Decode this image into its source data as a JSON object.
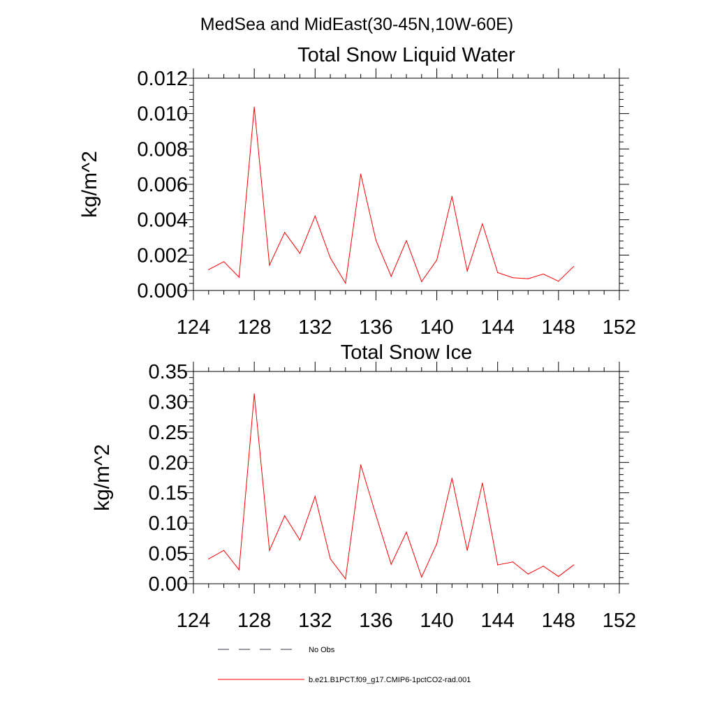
{
  "figure": {
    "main_title": "MedSea and MidEast(30-45N,10W-60E)"
  },
  "chart_data": [
    {
      "type": "line",
      "title": "Total Snow Liquid Water",
      "xlabel": "",
      "ylabel": "kg/m^2",
      "xlim": [
        124,
        152
      ],
      "ylim": [
        0,
        0.012
      ],
      "x_ticks": [
        124,
        128,
        132,
        136,
        140,
        144,
        148,
        152
      ],
      "x_tick_labels": [
        "124",
        "128",
        "132",
        "136",
        "140",
        "144",
        "148",
        "152"
      ],
      "y_ticks": [
        0,
        0.002,
        0.004,
        0.006,
        0.008,
        0.01,
        0.012
      ],
      "y_tick_labels": [
        "0.000",
        "0.002",
        "0.004",
        "0.006",
        "0.008",
        "0.010",
        "0.012"
      ],
      "grid": false,
      "series": [
        {
          "color": "#ff0000",
          "x": [
            125,
            126,
            127,
            128,
            129,
            130,
            131,
            132,
            133,
            134,
            135,
            136,
            137,
            138,
            139,
            140,
            141,
            142,
            143,
            144,
            145,
            146,
            147,
            148,
            149
          ],
          "values": [
            0.00118,
            0.00163,
            0.00075,
            0.01037,
            0.00143,
            0.00328,
            0.0021,
            0.00421,
            0.00184,
            0.00041,
            0.00658,
            0.00283,
            0.0008,
            0.00282,
            0.0005,
            0.00172,
            0.00532,
            0.0011,
            0.00377,
            0.00101,
            0.00072,
            0.00066,
            0.00093,
            0.00052,
            0.00136
          ]
        }
      ]
    },
    {
      "type": "line",
      "title": "Total Snow Ice",
      "xlabel": "",
      "ylabel": "kg/m^2",
      "xlim": [
        124,
        152
      ],
      "ylim": [
        0,
        0.35
      ],
      "x_ticks": [
        124,
        128,
        132,
        136,
        140,
        144,
        148,
        152
      ],
      "x_tick_labels": [
        "124",
        "128",
        "132",
        "136",
        "140",
        "144",
        "148",
        "152"
      ],
      "y_ticks": [
        0,
        0.05,
        0.1,
        0.15,
        0.2,
        0.25,
        0.3,
        0.35
      ],
      "y_tick_labels": [
        "0.00",
        "0.05",
        "0.10",
        "0.15",
        "0.20",
        "0.25",
        "0.30",
        "0.35"
      ],
      "grid": false,
      "series": [
        {
          "color": "#ff0000",
          "x": [
            125,
            126,
            127,
            128,
            129,
            130,
            131,
            132,
            133,
            134,
            135,
            136,
            137,
            138,
            139,
            140,
            141,
            142,
            143,
            144,
            145,
            146,
            147,
            148,
            149
          ],
          "values": [
            0.041,
            0.055,
            0.023,
            0.313,
            0.055,
            0.112,
            0.072,
            0.144,
            0.041,
            0.008,
            0.196,
            0.113,
            0.032,
            0.085,
            0.011,
            0.066,
            0.174,
            0.055,
            0.166,
            0.031,
            0.036,
            0.016,
            0.029,
            0.012,
            0.031
          ]
        }
      ]
    }
  ],
  "legend": {
    "placement": "bottom",
    "entries": [
      {
        "label": "No Obs",
        "color": "#333344",
        "style": "dashed"
      },
      {
        "label": "b.e21.B1PCT.f09_g17.CMIP6-1pctCO2-rad.001",
        "color": "#ff0000",
        "style": "solid"
      }
    ]
  }
}
